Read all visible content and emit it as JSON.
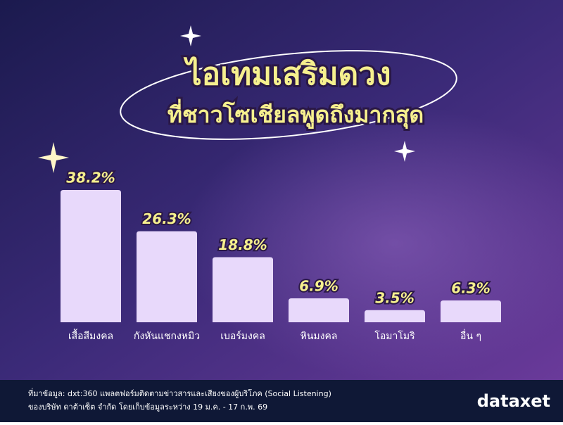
{
  "chart_data": {
    "type": "bar",
    "title": "ไอเทมเสริมดวง",
    "subtitle": "ที่ชาวโซเชียลพูดถึงมากสุด",
    "categories": [
      "เสื้อสีมงคล",
      "กังหันแชกงหมิว",
      "เบอร์มงคล",
      "หินมงคล",
      "โอมาโมริ",
      "อื่น ๆ"
    ],
    "values": [
      38.2,
      26.3,
      18.8,
      6.9,
      3.5,
      6.3
    ],
    "value_labels": [
      "38.2%",
      "26.3%",
      "18.8%",
      "6.9%",
      "3.5%",
      "6.3%"
    ],
    "color": "#e8d9fb"
  },
  "footer": {
    "source": [
      "ที่มาข้อมูล: dxt:360 แพลตฟอร์มติดตามข่าวสารและเสียงของผู้บริโภค (Social Listening)",
      "ของบริษัท ดาต้าเซ็ต จำกัด โดยเก็บข้อมูลระหว่าง 19 ม.ค. - 17 ก.พ. 69"
    ],
    "logo": "dataxet"
  }
}
